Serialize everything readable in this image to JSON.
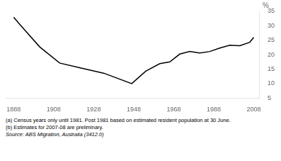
{
  "chart_data": {
    "type": "line",
    "x": [
      1888,
      1891,
      1901,
      1911,
      1921,
      1933,
      1947,
      1954,
      1961,
      1966,
      1971,
      1976,
      1981,
      1986,
      1991,
      1996,
      2001,
      2006,
      2008
    ],
    "values": [
      33.0,
      30.5,
      22.7,
      17.1,
      15.5,
      13.6,
      10.0,
      14.3,
      16.9,
      17.5,
      20.2,
      21.1,
      20.6,
      21.1,
      22.3,
      23.3,
      23.1,
      24.3,
      26.0
    ],
    "color": "#000000",
    "xlim": [
      1884,
      2011
    ],
    "xticks": [
      1888,
      1908,
      1928,
      1948,
      1968,
      1988,
      2008
    ],
    "ylim": [
      5,
      35
    ],
    "yticks": [
      5,
      10,
      15,
      20,
      25,
      30,
      35
    ],
    "ylabel": "%",
    "grid": false,
    "annotations": [
      "(a) Census years only until 1981. Post 1981 based on estimated resident population at 30 June.",
      "(b) Estimates for 2007-08 are preliminary.",
      "Source: ABS Migration, Australia (3412.0)"
    ]
  }
}
